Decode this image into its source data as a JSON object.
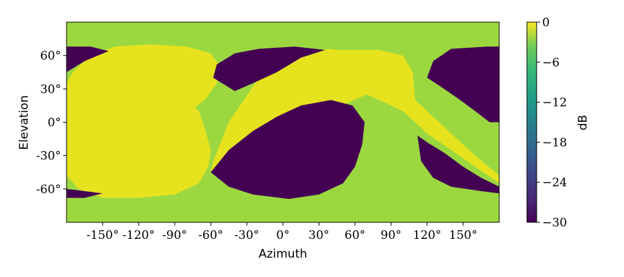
{
  "chart_data": {
    "type": "heatmap",
    "title": "",
    "xlabel": "Azimuth",
    "ylabel": "Elevation",
    "x_range": [
      -180,
      180
    ],
    "y_range": [
      -90,
      90
    ],
    "x_ticks": [
      -150,
      -120,
      -90,
      -60,
      -30,
      0,
      30,
      60,
      90,
      120,
      150
    ],
    "x_tick_labels": [
      "-150°",
      "-120°",
      "-90°",
      "-60°",
      "-30°",
      "0°",
      "30°",
      "60°",
      "90°",
      "120°",
      "150°"
    ],
    "y_ticks": [
      60,
      30,
      0,
      -30,
      -60
    ],
    "y_tick_labels": [
      "60°",
      "30°",
      "0°",
      "-30°",
      "-60°"
    ],
    "colorbar": {
      "label": "dB",
      "range": [
        -30,
        0
      ],
      "ticks": [
        0,
        -6,
        -12,
        -18,
        -24,
        -30
      ],
      "tick_labels": [
        "0",
        "−6",
        "−12",
        "−18",
        "−24",
        "−30"
      ],
      "colormap": "viridis"
    },
    "levels": {
      "background_db": -6,
      "main_lobe_db": 0,
      "null_db": -30
    },
    "regions": [
      {
        "name": "main-lobe-a",
        "value_db": 0,
        "outline": [
          [
            -180,
            -12
          ],
          [
            -160,
            -18
          ],
          [
            -135,
            -18
          ],
          [
            -110,
            -10
          ],
          [
            -90,
            0
          ],
          [
            -65,
            20
          ],
          [
            -55,
            35
          ],
          [
            -52,
            50
          ],
          [
            -60,
            62
          ],
          [
            -80,
            68
          ],
          [
            -110,
            70
          ],
          [
            -140,
            68
          ],
          [
            -160,
            60
          ],
          [
            -175,
            45
          ],
          [
            -180,
            35
          ],
          [
            -180,
            -48
          ],
          [
            -170,
            -60
          ],
          [
            -150,
            -68
          ],
          [
            -120,
            -68
          ],
          [
            -90,
            -65
          ],
          [
            -70,
            -55
          ],
          [
            -62,
            -40
          ],
          [
            -60,
            -25
          ],
          [
            -65,
            -5
          ],
          [
            -70,
            10
          ],
          [
            -80,
            20
          ],
          [
            -100,
            25
          ],
          [
            -130,
            25
          ],
          [
            -155,
            20
          ],
          [
            -175,
            5
          ],
          [
            -180,
            -5
          ]
        ]
      },
      {
        "name": "main-lobe-b",
        "value_db": 0,
        "outline": [
          [
            -60,
            -45
          ],
          [
            -40,
            -25
          ],
          [
            -20,
            -5
          ],
          [
            0,
            5
          ],
          [
            20,
            10
          ],
          [
            40,
            12
          ],
          [
            55,
            18
          ],
          [
            70,
            25
          ],
          [
            100,
            10
          ],
          [
            120,
            -10
          ],
          [
            140,
            -25
          ],
          [
            160,
            -40
          ],
          [
            180,
            -55
          ],
          [
            180,
            -48
          ],
          [
            160,
            -30
          ],
          [
            140,
            -10
          ],
          [
            125,
            5
          ],
          [
            110,
            20
          ],
          [
            108,
            45
          ],
          [
            100,
            60
          ],
          [
            80,
            65
          ],
          [
            40,
            65
          ],
          [
            20,
            60
          ],
          [
            10,
            45
          ],
          [
            20,
            30
          ],
          [
            50,
            15
          ],
          [
            60,
            25
          ],
          [
            64,
            45
          ],
          [
            58,
            62
          ],
          [
            40,
            66
          ],
          [
            10,
            62
          ],
          [
            -20,
            40
          ],
          [
            -45,
            0
          ],
          [
            -58,
            -35
          ]
        ]
      },
      {
        "name": "null-center",
        "value_db": -30,
        "outline": [
          [
            -60,
            -45
          ],
          [
            -45,
            -25
          ],
          [
            -25,
            -8
          ],
          [
            -5,
            5
          ],
          [
            15,
            15
          ],
          [
            40,
            20
          ],
          [
            58,
            15
          ],
          [
            68,
            0
          ],
          [
            66,
            -20
          ],
          [
            60,
            -40
          ],
          [
            50,
            -55
          ],
          [
            30,
            -65
          ],
          [
            5,
            -69
          ],
          [
            -25,
            -65
          ],
          [
            -45,
            -58
          ]
        ]
      },
      {
        "name": "null-upper-mid",
        "value_db": -30,
        "outline": [
          [
            -58,
            40
          ],
          [
            -40,
            28
          ],
          [
            -25,
            35
          ],
          [
            -5,
            45
          ],
          [
            15,
            58
          ],
          [
            35,
            65
          ],
          [
            10,
            68
          ],
          [
            -20,
            66
          ],
          [
            -40,
            62
          ],
          [
            -55,
            52
          ]
        ]
      },
      {
        "name": "null-upper-left",
        "value_db": -30,
        "outline": [
          [
            -180,
            68
          ],
          [
            -160,
            68
          ],
          [
            -145,
            64
          ],
          [
            -165,
            55
          ],
          [
            -180,
            45
          ]
        ]
      },
      {
        "name": "null-lower-left",
        "value_db": -30,
        "outline": [
          [
            -180,
            -60
          ],
          [
            -165,
            -62
          ],
          [
            -150,
            -64
          ],
          [
            -165,
            -68
          ],
          [
            -180,
            -68
          ]
        ]
      },
      {
        "name": "null-upper-right",
        "value_db": -30,
        "outline": [
          [
            120,
            40
          ],
          [
            125,
            55
          ],
          [
            140,
            66
          ],
          [
            170,
            68
          ],
          [
            180,
            68
          ],
          [
            180,
            0
          ],
          [
            172,
            0
          ],
          [
            160,
            10
          ],
          [
            145,
            22
          ],
          [
            130,
            33
          ]
        ]
      },
      {
        "name": "null-lower-right",
        "value_db": -30,
        "outline": [
          [
            112,
            -12
          ],
          [
            115,
            -35
          ],
          [
            125,
            -50
          ],
          [
            140,
            -58
          ],
          [
            165,
            -62
          ],
          [
            180,
            -64
          ],
          [
            180,
            -58
          ],
          [
            165,
            -50
          ],
          [
            150,
            -40
          ],
          [
            135,
            -28
          ],
          [
            120,
            -18
          ]
        ]
      }
    ]
  }
}
